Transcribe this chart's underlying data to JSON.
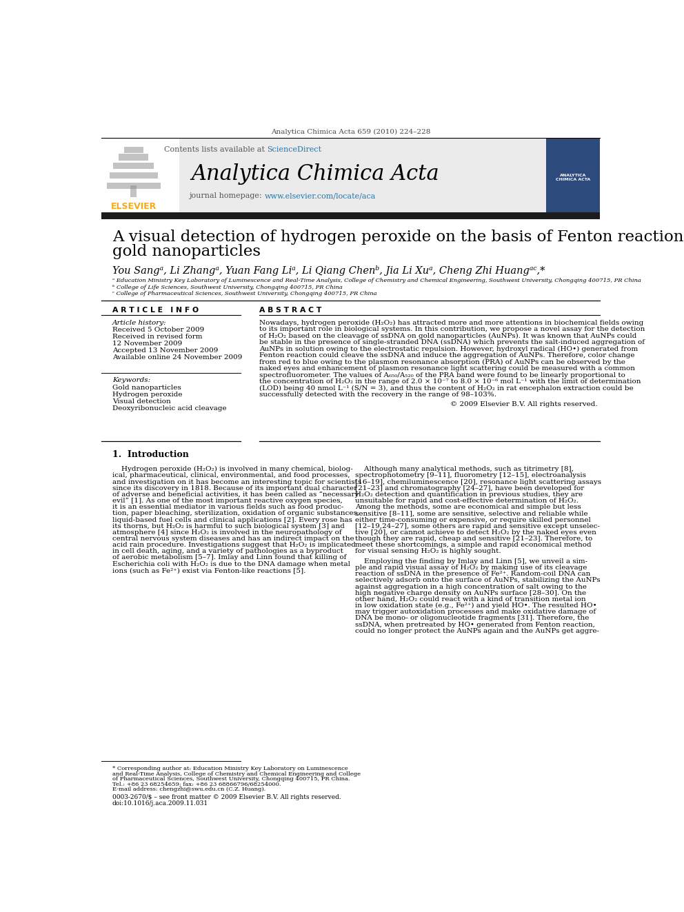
{
  "journal_header": "Analytica Chimica Acta 659 (2010) 224–228",
  "contents_text": "Contents lists available at ",
  "sciencedirect_text": "ScienceDirect",
  "journal_name": "Analytica Chimica Acta",
  "journal_homepage_label": "journal homepage: ",
  "journal_homepage_url": "www.elsevier.com/locate/aca",
  "title_line1": "A visual detection of hydrogen peroxide on the basis of Fenton reaction with",
  "title_line2": "gold nanoparticles",
  "authors_line": "You Sangᵃ, Li Zhangᵃ, Yuan Fang Liᵃ, Li Qiang Chenᵇ, Jia Li Xuᵃ, Cheng Zhi Huangᵃᶜ,*",
  "affil_a": "ᵃ Education Ministry Key Laboratory of Luminescence and Real-Time Analysis, College of Chemistry and Chemical Engineering, Southwest University, Chongqing 400715, PR China",
  "affil_b": "ᵇ College of Life Sciences, Southwest University, Chongqing 400715, PR China",
  "affil_c": "ᶜ College of Pharmaceutical Sciences, Southwest University, Chongqing 400715, PR China",
  "article_info_header": "A R T I C L E   I N F O",
  "abstract_header": "A B S T R A C T",
  "article_history_label": "Article history:",
  "history_items": [
    "Received 5 October 2009",
    "Received in revised form",
    "12 November 2009",
    "Accepted 13 November 2009",
    "Available online 24 November 2009"
  ],
  "keywords_label": "Keywords:",
  "keywords": [
    "Gold nanoparticles",
    "Hydrogen peroxide",
    "Visual detection",
    "Deoxyribonucleic acid cleavage"
  ],
  "abstract_lines": [
    "Nowadays, hydrogen peroxide (H₂O₂) has attracted more and more attentions in biochemical fields owing",
    "to its important role in biological systems. In this contribution, we propose a novel assay for the detection",
    "of H₂O₂ based on the cleavage of ssDNA on gold nanoparticles (AuNPs). It was known that AuNPs could",
    "be stable in the presence of single-stranded DNA (ssDNA) which prevents the salt-induced aggregation of",
    "AuNPs in solution owing to the electrostatic repulsion. However, hydroxyl radical (HO•) generated from",
    "Fenton reaction could cleave the ssDNA and induce the aggregation of AuNPs. Therefore, color change",
    "from red to blue owing to the plasmon resonance absorption (PRA) of AuNPs can be observed by the",
    "naked eyes and enhancement of plasmon resonance light scattering could be measured with a common",
    "spectrofluorometer. The values of A₆₅₀/A₅₂₀ of the PRA band were found to be linearly proportional to",
    "the concentration of H₂O₂ in the range of 2.0 × 10⁻⁷ to 8.0 × 10⁻⁶ mol L⁻¹ with the limit of determination",
    "(LOD) being 40 nmol L⁻¹ (S/N = 3), and thus the content of H₂O₂ in rat encephalon extraction could be",
    "successfully detected with the recovery in the range of 98–103%."
  ],
  "copyright": "© 2009 Elsevier B.V. All rights reserved.",
  "intro_header": "1.  Introduction",
  "intro_left_lines": [
    "    Hydrogen peroxide (H₂O₂) is involved in many chemical, biolog-",
    "ical, pharmaceutical, clinical, environmental, and food processes,",
    "and investigation on it has become an interesting topic for scientists",
    "since its discovery in 1818. Because of its important dual character",
    "of adverse and beneficial activities, it has been called as “necessary",
    "evil” [1]. As one of the most important reactive oxygen species,",
    "it is an essential mediator in various fields such as food produc-",
    "tion, paper bleaching, sterilization, oxidation of organic substances,",
    "liquid-based fuel cells and clinical applications [2]. Every rose has",
    "its thorns, but H₂O₂ is harmful to such biological system [3] and",
    "atmosphere [4] since H₂O₂ is involved in the neuropathology of",
    "central nervous system diseases and has an indirect impact on the",
    "acid rain procedure. Investigations suggest that H₂O₂ is implicated",
    "in cell death, aging, and a variety of pathologies as a byproduct",
    "of aerobic metabolism [5–7]. Imlay and Linn found that killing of",
    "Escherichia coli with H₂O₂ is due to the DNA damage when metal",
    "ions (such as Fe²⁺) exist via Fenton-like reactions [5]."
  ],
  "intro_right_lines": [
    "    Although many analytical methods, such as titrimetry [8],",
    "spectrophotometry [9–11], fluorometry [12–15], electroanalysis",
    "[16–19], chemiluminescence [20], resonance light scattering assays",
    "[21–23] and chromatography [24–27], have been developed for",
    "H₂O₂ detection and quantification in previous studies, they are",
    "unsuitable for rapid and cost-effective determination of H₂O₂.",
    "Among the methods, some are economical and simple but less",
    "sensitive [8–11], some are sensitive, selective and reliable while",
    "either time-consuming or expensive, or require skilled personnel",
    "[12–19,24–27], some others are rapid and sensitive except unselec-",
    "tive [20], or cannot achieve to detect H₂O₂ by the naked eyes even",
    "though they are rapid, cheap and sensitive [21–23]. Therefore, to",
    "meet these shortcomings, a simple and rapid economical method",
    "for visual sensing H₂O₂ is highly sought."
  ],
  "intro_right2_lines": [
    "    Employing the finding by Imlay and Linn [5], we unveil a sim-",
    "ple and rapid visual assay of H₂O₂ by making use of its cleavage",
    "reaction of ssDNA in the presence of Fe²⁺. Random-coil DNA can",
    "selectively adsorb onto the surface of AuNPs, stabilizing the AuNPs",
    "against aggregation in a high concentration of salt owing to the",
    "high negative charge density on AuNPs surface [28–30]. On the",
    "other hand, H₂O₂ could react with a kind of transition metal ion",
    "in low oxidation state (e.g., Fe²⁺) and yield HO•. The resulted HO•",
    "may trigger autoxidation processes and make oxidative damage of",
    "DNA be mono- or oligonucleotide fragments [31]. Therefore, the",
    "ssDNA, when pretreated by HO• generated from Fenton reaction,",
    "could no longer protect the AuNPs again and the AuNPs get aggre-"
  ],
  "footnote_lines": [
    "* Corresponding author at: Education Ministry Key Laboratory on Luminescence",
    "and Real-Time Analysis, College of Chemistry and Chemical Engineering and College",
    "of Pharmaceutical Sciences, Southwest University, Chongqing 400715, PR China.",
    "Tel.: +86 23 68254659; fax: +86 23 68866796/68254000.",
    "E-mail address: chengzhi@swu.edu.cn (C.Z. Huang)."
  ],
  "footer_line1": "0003-2670/$ – see front matter © 2009 Elsevier B.V. All rights reserved.",
  "footer_line2": "doi:10.1016/j.aca.2009.11.031",
  "color_sciencedirect": "#2874a6",
  "color_link": "#2874a6",
  "color_dark_bar": "#1c1c1c",
  "color_header_bg": "#ebebeb"
}
